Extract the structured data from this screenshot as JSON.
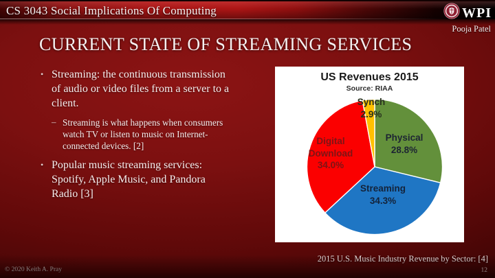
{
  "header": {
    "course_title": "CS 3043 Social Implications Of Computing",
    "logo_text": "WPI",
    "author": "Pooja Patel"
  },
  "slide_title": "CURRENT STATE OF STREAMING SERVICES",
  "content": {
    "bullet1": "Streaming: the continuous transmission of audio or video files from a server to a client.",
    "bullet1_sub": "Streaming is what happens when consumers watch TV or listen to music on Internet-connected devices. [2]",
    "bullet2": "Popular music streaming services: Spotify, Apple Music, and Pandora Radio [3]"
  },
  "chart_caption": "2015 U.S. Music Industry Revenue by Sector: [4]",
  "footer": {
    "copyright": "© 2020 Keith A. Pray",
    "page_number": "12"
  },
  "chart_data": {
    "type": "pie",
    "title": "US Revenues 2015",
    "subtitle": "Source: RIAA",
    "unit": "percent of revenue",
    "start_angle_deg": 0,
    "direction": "clockwise",
    "legend": "none",
    "label_style": "inside",
    "slices": [
      {
        "label": "Physical",
        "value": 28.8,
        "pct_label": "28.8%",
        "color": "#63903B",
        "label_color": "#1d2433"
      },
      {
        "label": "Streaming",
        "value": 34.3,
        "pct_label": "34.3%",
        "color": "#1F76C4",
        "label_color": "#14233a"
      },
      {
        "label": "Digital Download",
        "value": 34.0,
        "pct_label": "34.0%",
        "color": "#FB0000",
        "label_color": "#7E1416"
      },
      {
        "label": "Synch",
        "value": 2.9,
        "pct_label": "2.9%",
        "color": "#FFC000",
        "label_color": "#27301d"
      }
    ]
  }
}
